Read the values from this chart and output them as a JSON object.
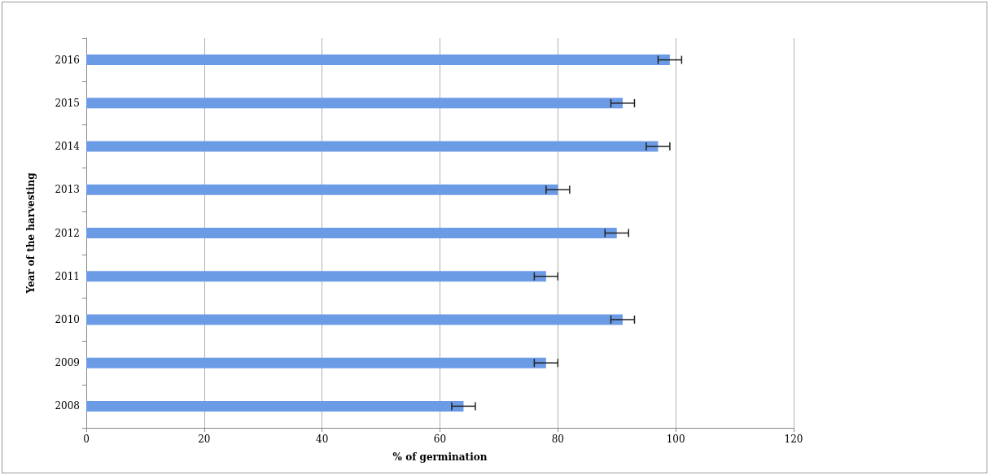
{
  "chart_data": {
    "type": "bar",
    "orientation": "horizontal",
    "xlabel": "% of germination",
    "ylabel": "Year of the harvesting",
    "categories": [
      "2016",
      "2015",
      "2014",
      "2013",
      "2012",
      "2011",
      "2010",
      "2009",
      "2008"
    ],
    "values": [
      99,
      91,
      97,
      80,
      90,
      78,
      91,
      78,
      64
    ],
    "errors": [
      2,
      2,
      2,
      2,
      2,
      2,
      2,
      2,
      2
    ],
    "color": "#6c9be6",
    "xlim": [
      0,
      120
    ],
    "xticks": [
      0,
      20,
      40,
      60,
      80,
      100,
      120
    ],
    "grid": "x"
  }
}
